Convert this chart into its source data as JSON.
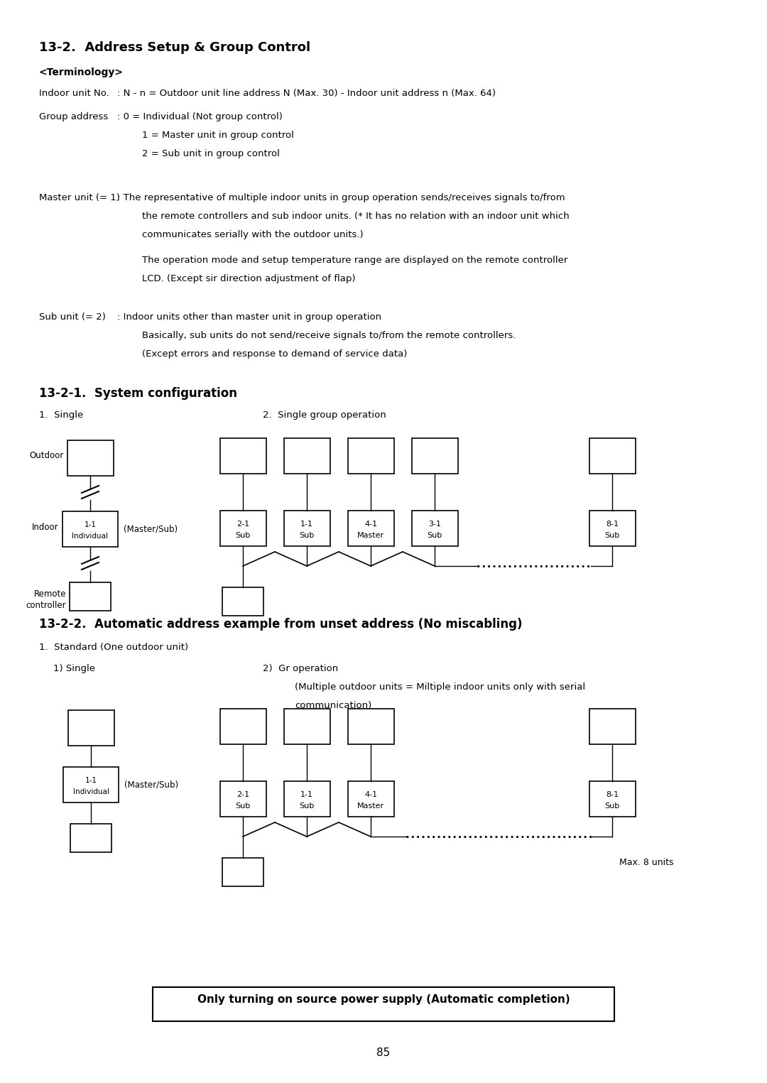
{
  "title": "13-2.  Address Setup & Group Control",
  "background_color": "#ffffff",
  "text_color": "#000000",
  "page_number": "85",
  "terminology_header": "<Terminology>",
  "section_21_title": "13-2-1.  System configuration",
  "single_label": "1.  Single",
  "group_label": "2.  Single group operation",
  "section_22_title": "13-2-2.  Automatic address example from unset address (No miscabling)",
  "standard_label": "1.  Standard (One outdoor unit)",
  "single2_label": "1) Single",
  "gr_label": "2)  Gr operation",
  "gr_text1": "(Multiple outdoor units = Miltiple indoor units only with serial",
  "gr_text2": "communication)",
  "max_units_label": "Max. 8 units",
  "bottom_note": "Only turning on source power supply (Automatic completion)",
  "group_units_1": [
    {
      "label1": "2-1",
      "label2": "Sub",
      "x": 3.1
    },
    {
      "label1": "1-1",
      "label2": "Sub",
      "x": 4.0
    },
    {
      "label1": "4-1",
      "label2": "Master",
      "x": 4.9
    },
    {
      "label1": "3-1",
      "label2": "Sub",
      "x": 5.8
    },
    {
      "label1": "8-1",
      "label2": "Sub",
      "x": 8.3
    }
  ],
  "group_units_2": [
    {
      "label1": "2-1",
      "label2": "Sub",
      "x": 3.1
    },
    {
      "label1": "1-1",
      "label2": "Sub",
      "x": 4.0
    },
    {
      "label1": "4-1",
      "label2": "Master",
      "x": 4.9
    },
    {
      "label1": "8-1",
      "label2": "Sub",
      "x": 8.3
    }
  ]
}
